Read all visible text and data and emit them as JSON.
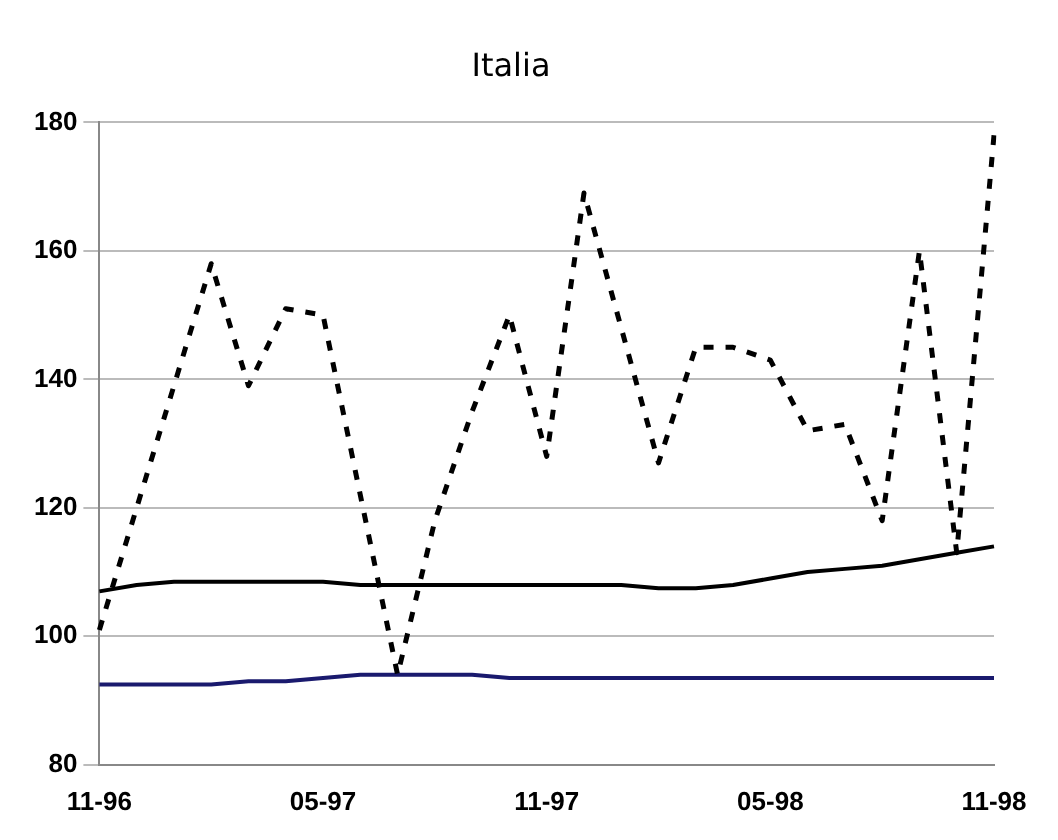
{
  "chart_data": {
    "type": "line",
    "title": "Italia",
    "categories": [
      "11-96",
      null,
      null,
      null,
      null,
      null,
      "05-97",
      null,
      null,
      null,
      null,
      null,
      "11-97",
      null,
      null,
      null,
      null,
      null,
      "05-98",
      null,
      null,
      null,
      null,
      null,
      "11-98"
    ],
    "series": [
      {
        "color": "#000000",
        "line_style": "dashed",
        "values": [
          101,
          120,
          139,
          158,
          139,
          151,
          150,
          122,
          94,
          118,
          135,
          150,
          128,
          169,
          148,
          127,
          145,
          145,
          143,
          132,
          133,
          118,
          160,
          113,
          178
        ]
      },
      {
        "color": "#000000",
        "line_style": "solid",
        "values": [
          107,
          108,
          108.5,
          108.5,
          108.5,
          108.5,
          108.5,
          108,
          108,
          108,
          108,
          108,
          108,
          108,
          108,
          107.5,
          107.5,
          108,
          109,
          110,
          110.5,
          111,
          112,
          113,
          114
        ]
      },
      {
        "color": "#1a1a6e",
        "line_style": "solid",
        "values": [
          92.5,
          92.5,
          92.5,
          92.5,
          93,
          93,
          93.5,
          94,
          94,
          94,
          94,
          93.5,
          93.5,
          93.5,
          93.5,
          93.5,
          93.5,
          93.5,
          93.5,
          93.5,
          93.5,
          93.5,
          93.5,
          93.5,
          93.5
        ]
      }
    ],
    "ylim": [
      80,
      180
    ],
    "yticks": [
      80,
      100,
      120,
      140,
      160,
      180
    ],
    "grid": "y",
    "legend": false,
    "marker": "none"
  }
}
